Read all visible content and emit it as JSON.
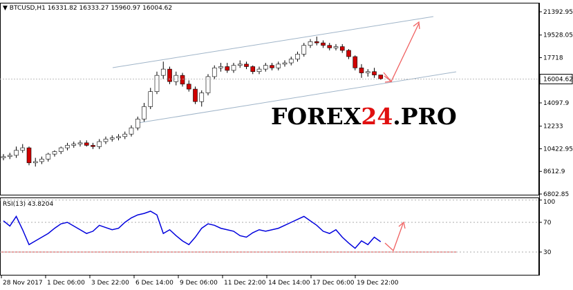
{
  "chart_data": [
    {
      "type": "candlestick",
      "symbol": "BTCUSD,H1",
      "xtick_labels": [
        "28 Nov 2017",
        "1 Dec 06:00",
        "3 Dec 22:00",
        "6 Dec 14:00",
        "9 Dec 06:00",
        "11 Dec 22:00",
        "14 Dec 14:00",
        "17 Dec 06:00",
        "19 Dec 22:00"
      ],
      "open": [
        9700,
        9800,
        9900,
        10300,
        10500,
        9300,
        9400,
        9600,
        10000,
        10200,
        10500,
        10700,
        10800,
        10900,
        10700,
        10600,
        11000,
        11200,
        11300,
        11400,
        11600,
        12100,
        12800,
        13800,
        15000,
        16300,
        16800,
        15800,
        16300,
        15600,
        15200,
        14200,
        14900,
        16200,
        16900,
        17000,
        16700,
        17100,
        17200,
        17000,
        16600,
        16800,
        17100,
        16900,
        17200,
        17300,
        17600,
        18000,
        18700,
        19000,
        18900,
        18700,
        18500,
        18600,
        18300,
        17800,
        16900,
        16500,
        16600,
        16331.82
      ],
      "high": [
        10000,
        10100,
        10600,
        10800,
        10600,
        9700,
        9800,
        10100,
        10300,
        10600,
        10900,
        11000,
        11100,
        11100,
        10900,
        11200,
        11400,
        11500,
        11600,
        11800,
        12300,
        13000,
        14100,
        15300,
        16600,
        17400,
        17000,
        16600,
        16500,
        15900,
        15400,
        15100,
        16400,
        17100,
        17300,
        17300,
        17300,
        17500,
        17400,
        17100,
        17000,
        17300,
        17300,
        17400,
        17500,
        17800,
        18200,
        18900,
        19200,
        19400,
        19100,
        18900,
        18800,
        18800,
        18400,
        17900,
        17200,
        16800,
        16900,
        16333.27
      ],
      "low": [
        9500,
        9600,
        9700,
        10100,
        9100,
        9000,
        9200,
        9400,
        9800,
        10000,
        10300,
        10500,
        10600,
        10600,
        10400,
        10400,
        10800,
        11000,
        11100,
        11200,
        11400,
        11900,
        12600,
        13600,
        14800,
        16000,
        15600,
        15500,
        15400,
        15000,
        14000,
        13800,
        14700,
        16000,
        16600,
        16500,
        16500,
        16900,
        16800,
        16400,
        16400,
        16600,
        16700,
        16700,
        17000,
        17100,
        17400,
        17800,
        18500,
        18700,
        18500,
        18300,
        18300,
        18100,
        17600,
        16700,
        16100,
        16200,
        16100,
        15960.97
      ],
      "close": [
        9800,
        9900,
        10300,
        10500,
        9300,
        9400,
        9600,
        10000,
        10200,
        10500,
        10700,
        10800,
        10900,
        10700,
        10600,
        11000,
        11200,
        11300,
        11400,
        11600,
        12100,
        12800,
        13800,
        15000,
        16300,
        16800,
        15800,
        16300,
        15600,
        15200,
        14200,
        14900,
        16200,
        16900,
        17000,
        16700,
        17100,
        17200,
        17000,
        16600,
        16800,
        17100,
        16900,
        17200,
        17300,
        17600,
        18000,
        18700,
        19000,
        18900,
        18700,
        18500,
        18600,
        18300,
        17800,
        16900,
        16500,
        16600,
        16331.82,
        16004.62
      ],
      "ylim": [
        6747,
        22056
      ],
      "yticks": [
        21392.95,
        19528.05,
        17718.0,
        14097.9,
        12233.0,
        10422.95,
        8612.9,
        6802.85
      ],
      "up_color": "#ffffff",
      "down_color": "#d00000"
    },
    {
      "type": "line",
      "title": "RSI(13)",
      "color": "#0000dd",
      "values": [
        72,
        65,
        78,
        60,
        40,
        45,
        50,
        55,
        62,
        68,
        70,
        65,
        60,
        55,
        58,
        66,
        63,
        60,
        62,
        70,
        76,
        80,
        82,
        85,
        80,
        55,
        60,
        52,
        45,
        40,
        50,
        62,
        68,
        66,
        62,
        60,
        58,
        52,
        50,
        56,
        60,
        58,
        60,
        62,
        66,
        70,
        74,
        78,
        72,
        66,
        58,
        55,
        60,
        50,
        42,
        35,
        45,
        40,
        50,
        43.8204
      ],
      "ylim": [
        0,
        100
      ],
      "yticks": [
        100,
        70,
        30
      ]
    }
  ]
}
